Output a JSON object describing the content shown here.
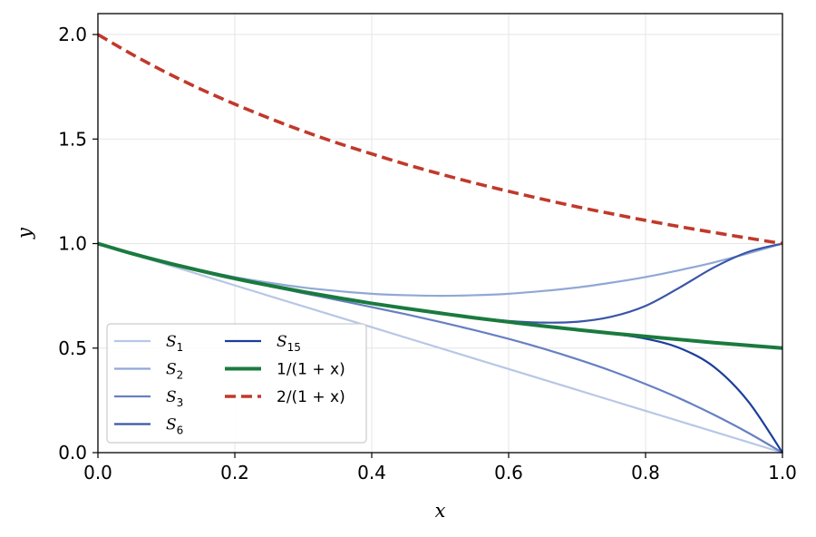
{
  "chart_data": {
    "type": "line",
    "title": "",
    "xlabel": "x",
    "ylabel": "y",
    "xlim": [
      0.0,
      1.0
    ],
    "ylim": [
      0.0,
      2.1
    ],
    "xticks": [
      "0.0",
      "0.2",
      "0.4",
      "0.6",
      "0.8",
      "1.0"
    ],
    "yticks": [
      "0.0",
      "0.5",
      "1.0",
      "1.5",
      "2.0"
    ],
    "grid": true,
    "legend_placement": "lower-left",
    "legend_columns": 2,
    "x": [
      0.0,
      0.05,
      0.1,
      0.15,
      0.2,
      0.25,
      0.3,
      0.35,
      0.4,
      0.45,
      0.5,
      0.55,
      0.6,
      0.65,
      0.7,
      0.75,
      0.8,
      0.85,
      0.9,
      0.95,
      1.0
    ],
    "series": [
      {
        "name": "S1",
        "label_base": "S",
        "label_sub": "1",
        "color": "#b7c7e6",
        "width": 2.2,
        "dash": "",
        "values": [
          1.0,
          0.95,
          0.9,
          0.85,
          0.8,
          0.75,
          0.7,
          0.65,
          0.6,
          0.55,
          0.5,
          0.45,
          0.4,
          0.35,
          0.3,
          0.25,
          0.2,
          0.15,
          0.1,
          0.05,
          0.0
        ]
      },
      {
        "name": "S2",
        "label_base": "S",
        "label_sub": "2",
        "color": "#90a8d6",
        "width": 2.2,
        "dash": "",
        "values": [
          1.0,
          0.953,
          0.91,
          0.873,
          0.84,
          0.813,
          0.79,
          0.773,
          0.76,
          0.753,
          0.75,
          0.753,
          0.76,
          0.773,
          0.79,
          0.813,
          0.84,
          0.873,
          0.91,
          0.953,
          1.0
        ]
      },
      {
        "name": "S3",
        "label_base": "S",
        "label_sub": "3",
        "color": "#6680c2",
        "width": 2.2,
        "dash": "",
        "values": [
          1.0,
          0.953,
          0.909,
          0.869,
          0.832,
          0.797,
          0.763,
          0.73,
          0.696,
          0.662,
          0.625,
          0.586,
          0.544,
          0.498,
          0.447,
          0.391,
          0.328,
          0.259,
          0.181,
          0.095,
          0.0
        ]
      },
      {
        "name": "S6",
        "label_base": "S",
        "label_sub": "6",
        "color": "#3a55a8",
        "width": 2.2,
        "dash": "",
        "values": [
          1.0,
          0.952,
          0.909,
          0.87,
          0.833,
          0.8,
          0.769,
          0.741,
          0.715,
          0.69,
          0.667,
          0.646,
          0.63,
          0.622,
          0.626,
          0.65,
          0.702,
          0.79,
          0.886,
          0.96,
          1.0
        ]
      },
      {
        "name": "S15",
        "label_base": "S",
        "label_sub": "15",
        "color": "#1c3d9c",
        "width": 2.2,
        "dash": "",
        "values": [
          1.0,
          0.952,
          0.909,
          0.87,
          0.833,
          0.8,
          0.769,
          0.741,
          0.714,
          0.69,
          0.667,
          0.645,
          0.625,
          0.606,
          0.588,
          0.569,
          0.545,
          0.5,
          0.41,
          0.245,
          0.0
        ]
      },
      {
        "name": "1/(1+x)",
        "label_text": "1/(1 + x)",
        "color": "#1a7a3e",
        "width": 4.0,
        "dash": "",
        "values": [
          1.0,
          0.952,
          0.909,
          0.87,
          0.833,
          0.8,
          0.769,
          0.741,
          0.714,
          0.69,
          0.667,
          0.645,
          0.625,
          0.606,
          0.588,
          0.571,
          0.556,
          0.541,
          0.526,
          0.513,
          0.5
        ]
      },
      {
        "name": "2/(1+x)",
        "label_text": "2/(1 + x)",
        "color": "#c0392b",
        "width": 3.6,
        "dash": "12,6",
        "values": [
          2.0,
          1.905,
          1.818,
          1.739,
          1.667,
          1.6,
          1.538,
          1.481,
          1.429,
          1.379,
          1.333,
          1.29,
          1.25,
          1.212,
          1.176,
          1.143,
          1.111,
          1.081,
          1.053,
          1.026,
          1.0
        ]
      }
    ]
  }
}
